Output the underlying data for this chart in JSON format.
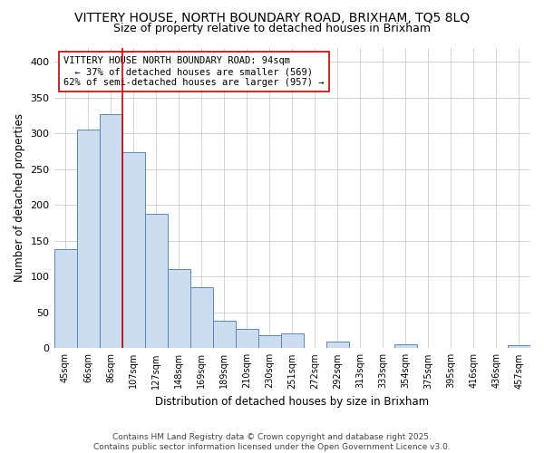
{
  "title_line1": "VITTERY HOUSE, NORTH BOUNDARY ROAD, BRIXHAM, TQ5 8LQ",
  "title_line2": "Size of property relative to detached houses in Brixham",
  "xlabel": "Distribution of detached houses by size in Brixham",
  "ylabel": "Number of detached properties",
  "bar_labels": [
    "45sqm",
    "66sqm",
    "86sqm",
    "107sqm",
    "127sqm",
    "148sqm",
    "169sqm",
    "189sqm",
    "210sqm",
    "230sqm",
    "251sqm",
    "272sqm",
    "292sqm",
    "313sqm",
    "333sqm",
    "354sqm",
    "375sqm",
    "395sqm",
    "416sqm",
    "436sqm",
    "457sqm"
  ],
  "bar_values": [
    138,
    305,
    327,
    274,
    188,
    110,
    85,
    38,
    27,
    18,
    21,
    1,
    9,
    1,
    0,
    5,
    0,
    0,
    0,
    0,
    4
  ],
  "bar_color": "#ccddf0",
  "bar_edge_color": "#5588bb",
  "vline_x": 2,
  "vline_color": "#cc0000",
  "annotation_text": "VITTERY HOUSE NORTH BOUNDARY ROAD: 94sqm\n  ← 37% of detached houses are smaller (569)\n62% of semi-detached houses are larger (957) →",
  "annotation_box_color": "#ffffff",
  "annotation_box_edge": "#cc0000",
  "ylim": [
    0,
    420
  ],
  "yticks": [
    0,
    50,
    100,
    150,
    200,
    250,
    300,
    350,
    400
  ],
  "bg_color": "#ffffff",
  "grid_color": "#cccccc",
  "footer_text": "Contains HM Land Registry data © Crown copyright and database right 2025.\nContains public sector information licensed under the Open Government Licence v3.0.",
  "title_fontsize": 10,
  "subtitle_fontsize": 9,
  "annotation_fontsize": 7.5,
  "footer_fontsize": 6.5
}
